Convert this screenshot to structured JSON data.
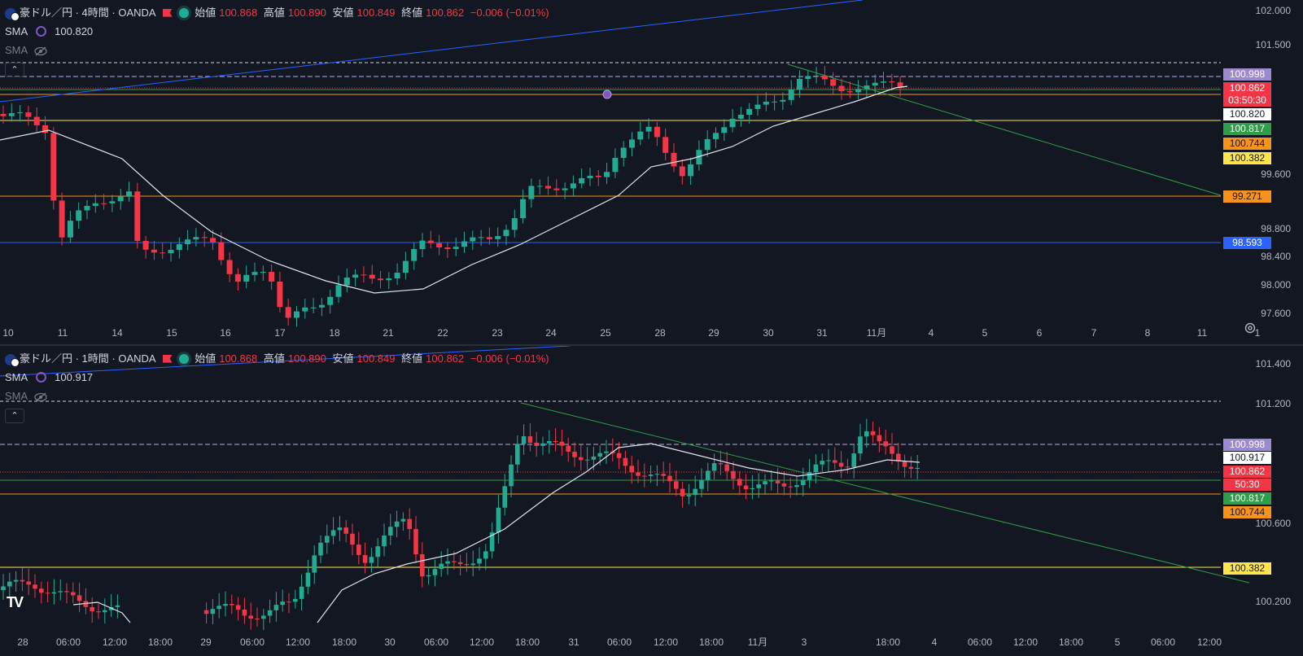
{
  "top": {
    "symbol": "豪ドル／円 · 4時間 · OANDA",
    "ohlc": {
      "open_label": "始値",
      "open": "100.868",
      "high_label": "高値",
      "high": "100.890",
      "low_label": "安値",
      "low": "100.849",
      "close_label": "終値",
      "close": "100.862",
      "change": "−0.006 (−0.01%)"
    },
    "sma1_label": "SMA",
    "sma1_value": "100.820",
    "sma2_label": "SMA",
    "collapse": "⌃",
    "y_ticks": [
      "102.000",
      "101.500",
      "99.600",
      "98.800",
      "98.400",
      "98.000",
      "97.600"
    ],
    "x_ticks": [
      "10",
      "11",
      "14",
      "15",
      "16",
      "17",
      "18",
      "21",
      "22",
      "23",
      "24",
      "25",
      "28",
      "29",
      "30",
      "31",
      "11月",
      "4",
      "5",
      "6",
      "7",
      "8",
      "11",
      "1"
    ],
    "price_labels": [
      {
        "text": "100.998",
        "bg": "#9c8ad0",
        "fg": "#ffffff"
      },
      {
        "text": "100.862",
        "bg": "#f23645",
        "fg": "#ffffff"
      },
      {
        "text": "03:50:30",
        "bg": "#f23645",
        "fg": "#ffffff"
      },
      {
        "text": "100.820",
        "bg": "#ffffff",
        "fg": "#131722"
      },
      {
        "text": "100.817",
        "bg": "#2e9e48",
        "fg": "#ffffff"
      },
      {
        "text": "100.744",
        "bg": "#f7931a",
        "fg": "#131722"
      },
      {
        "text": "100.382",
        "bg": "#ffe44d",
        "fg": "#131722"
      },
      {
        "text": "99.271",
        "bg": "#f7931a",
        "fg": "#131722"
      },
      {
        "text": "98.593",
        "bg": "#2962ff",
        "fg": "#ffffff"
      }
    ]
  },
  "bottom": {
    "symbol": "豪ドル／円 · 1時間 · OANDA",
    "ohlc": {
      "open_label": "始値",
      "open": "100.868",
      "high_label": "高値",
      "high": "100.890",
      "low_label": "安値",
      "low": "100.849",
      "close_label": "終値",
      "close": "100.862",
      "change": "−0.006 (−0.01%)"
    },
    "sma1_label": "SMA",
    "sma1_value": "100.917",
    "sma2_label": "SMA",
    "collapse": "⌃",
    "y_ticks": [
      "101.400",
      "101.200",
      "100.600",
      "100.200"
    ],
    "x_ticks": [
      "28",
      "06:00",
      "12:00",
      "18:00",
      "29",
      "06:00",
      "12:00",
      "18:00",
      "30",
      "06:00",
      "12:00",
      "18:00",
      "31",
      "06:00",
      "12:00",
      "18:00",
      "11月",
      "3",
      "18:00",
      "4",
      "06:00",
      "12:00",
      "18:00",
      "5",
      "06:00",
      "12:00"
    ],
    "price_labels": [
      {
        "text": "100.998",
        "bg": "#9c8ad0",
        "fg": "#ffffff"
      },
      {
        "text": "100.917",
        "bg": "#ffffff",
        "fg": "#131722"
      },
      {
        "text": "100.862",
        "bg": "#f23645",
        "fg": "#ffffff"
      },
      {
        "text": "50:30",
        "bg": "#f23645",
        "fg": "#ffffff"
      },
      {
        "text": "100.817",
        "bg": "#2e9e48",
        "fg": "#ffffff"
      },
      {
        "text": "100.744",
        "bg": "#f7931a",
        "fg": "#131722"
      },
      {
        "text": "100.382",
        "bg": "#ffe44d",
        "fg": "#131722"
      }
    ]
  },
  "colors": {
    "up": "#22ab94",
    "down": "#f23645",
    "background": "#131722",
    "axis_text": "#b2b5be"
  },
  "icons": [
    "aud-flag-icon",
    "red-flag-icon",
    "market-open-dot-icon",
    "sma-circle-icon",
    "eye-hidden-icon",
    "settings-gear-icon",
    "tradingview-logo"
  ],
  "logo": "TV"
}
